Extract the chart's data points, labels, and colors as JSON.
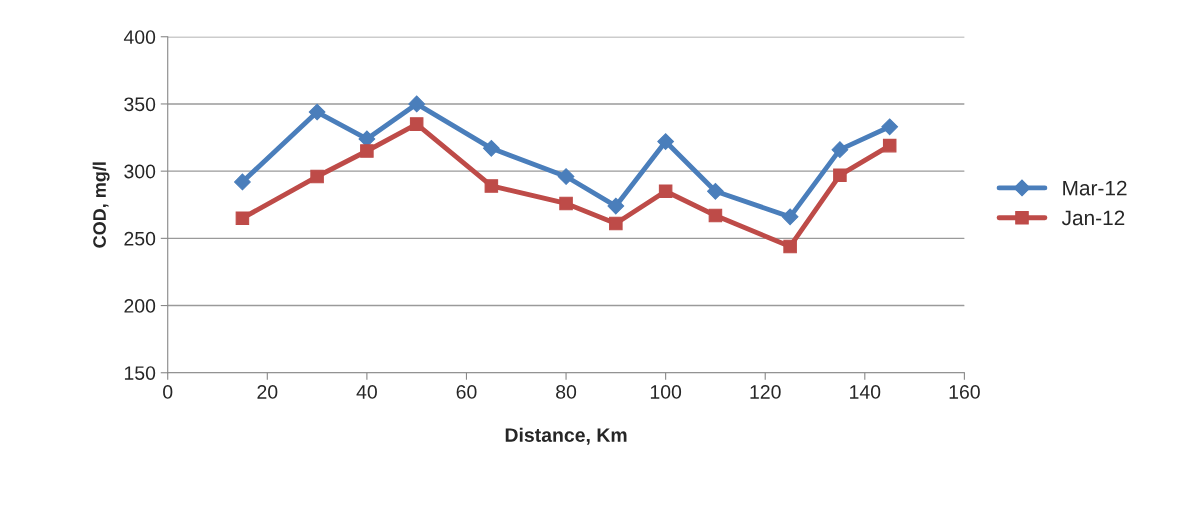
{
  "chart_data": {
    "type": "line",
    "xlabel": "Distance, Km",
    "ylabel": "COD, mg/l",
    "x": [
      15,
      30,
      40,
      50,
      65,
      80,
      90,
      100,
      110,
      125,
      135,
      145
    ],
    "series": [
      {
        "name": "Mar-12",
        "color": "#4a7ebb",
        "marker": "diamond",
        "values": [
          292,
          344,
          324,
          350,
          317,
          296,
          274,
          322,
          285,
          266,
          316,
          333
        ]
      },
      {
        "name": "Jan-12",
        "color": "#be4b48",
        "marker": "square",
        "values": [
          265,
          296,
          315,
          335,
          289,
          276,
          261,
          285,
          267,
          244,
          297,
          319
        ]
      }
    ],
    "xlim": [
      0,
      160
    ],
    "xticks": [
      0,
      20,
      40,
      60,
      80,
      100,
      120,
      140,
      160
    ],
    "ylim": [
      150,
      400
    ],
    "yticks": [
      150,
      200,
      250,
      300,
      350,
      400
    ],
    "grid": "y",
    "legend": "right",
    "line_style": "solid"
  }
}
